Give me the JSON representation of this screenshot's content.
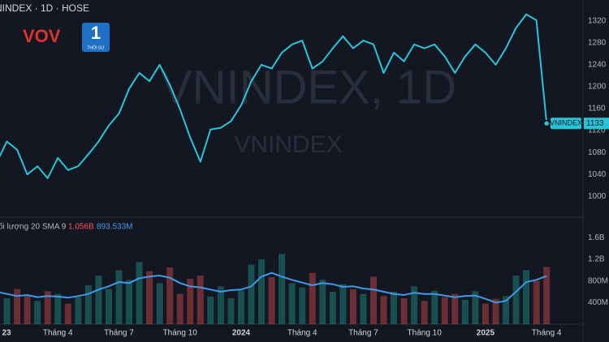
{
  "chart_data": [
    {
      "type": "line",
      "title": "NINDEX · 1D · HOSE",
      "watermark_title": "VNINDEX, 1D",
      "watermark_subtitle": "VNINDEX",
      "categories": [
        "23",
        null,
        null,
        null,
        null,
        null,
        "Tháng 4",
        null,
        null,
        null,
        null,
        null,
        "Tháng 7",
        null,
        null,
        null,
        null,
        null,
        "Tháng 10",
        null,
        null,
        null,
        null,
        null,
        "2024",
        null,
        null,
        null,
        null,
        null,
        "Tháng 4",
        null,
        null,
        null,
        null,
        null,
        "Tháng 7",
        null,
        null,
        null,
        null,
        null,
        "Tháng 10",
        null,
        null,
        null,
        null,
        null,
        "2025",
        null,
        null,
        null,
        null,
        null,
        "Tháng 4"
      ],
      "series": [
        {
          "name": "VNINDEX",
          "color": "#26c6da",
          "values": [
            1062,
            1100,
            1085,
            1040,
            1055,
            1033,
            1070,
            1048,
            1055,
            1077,
            1100,
            1129,
            1151,
            1196,
            1225,
            1210,
            1240,
            1203,
            1159,
            1107,
            1063,
            1122,
            1125,
            1137,
            1166,
            1210,
            1240,
            1233,
            1262,
            1277,
            1284,
            1233,
            1246,
            1270,
            1292,
            1270,
            1284,
            1277,
            1225,
            1262,
            1246,
            1277,
            1270,
            1277,
            1255,
            1225,
            1255,
            1277,
            1262,
            1240,
            1270,
            1307,
            1332,
            1321,
            1133
          ]
        }
      ],
      "ylim": [
        962,
        1358
      ],
      "yticks": [
        1000,
        1040,
        1080,
        1120,
        1160,
        1200,
        1240,
        1280,
        1320
      ],
      "grid": false
    },
    {
      "type": "bar",
      "title": "ối lượng 20 SMA 9",
      "series": [
        {
          "color": "#f7525f",
          "last_value_label": "1.056B",
          "values": [
            700000000,
            480000000,
            650000000,
            520000000,
            430000000,
            610000000,
            560000000,
            380000000,
            500000000,
            720000000,
            900000000,
            650000000,
            1000000000,
            820000000,
            1150000000,
            980000000,
            760000000,
            1050000000,
            560000000,
            840000000,
            900000000,
            510000000,
            700000000,
            480000000,
            620000000,
            1100000000,
            1200000000,
            870000000,
            1300000000,
            760000000,
            680000000,
            950000000,
            820000000,
            600000000,
            740000000,
            650000000,
            560000000,
            880000000,
            520000000,
            600000000,
            480000000,
            700000000,
            430000000,
            620000000,
            500000000,
            560000000,
            450000000,
            610000000,
            380000000,
            470000000,
            520000000,
            900000000,
            1000000000,
            800000000,
            1056000000
          ]
        },
        {
          "type": "line",
          "color": "#3d9be9",
          "last_value_label": "893.533M",
          "values": [
            600000000,
            560000000,
            520000000,
            540000000,
            500000000,
            520000000,
            510000000,
            490000000,
            520000000,
            560000000,
            640000000,
            700000000,
            780000000,
            760000000,
            850000000,
            880000000,
            900000000,
            860000000,
            760000000,
            700000000,
            680000000,
            640000000,
            600000000,
            630000000,
            640000000,
            700000000,
            880000000,
            950000000,
            880000000,
            820000000,
            770000000,
            720000000,
            760000000,
            740000000,
            690000000,
            700000000,
            660000000,
            640000000,
            600000000,
            560000000,
            540000000,
            580000000,
            560000000,
            560000000,
            530000000,
            500000000,
            520000000,
            530000000,
            470000000,
            400000000,
            430000000,
            600000000,
            780000000,
            820000000,
            893533000
          ]
        }
      ],
      "ylim": [
        0,
        1980000000
      ],
      "yticks": [
        {
          "value": 400000000,
          "label": "400M"
        },
        {
          "value": 800000000,
          "label": "800M"
        },
        {
          "value": 1200000000,
          "label": "1.2B"
        },
        {
          "value": 1600000000,
          "label": "1.6B"
        }
      ]
    }
  ],
  "logo": {
    "name": "VOV",
    "channel": "1",
    "subtitle": "THỜI SỰ"
  }
}
